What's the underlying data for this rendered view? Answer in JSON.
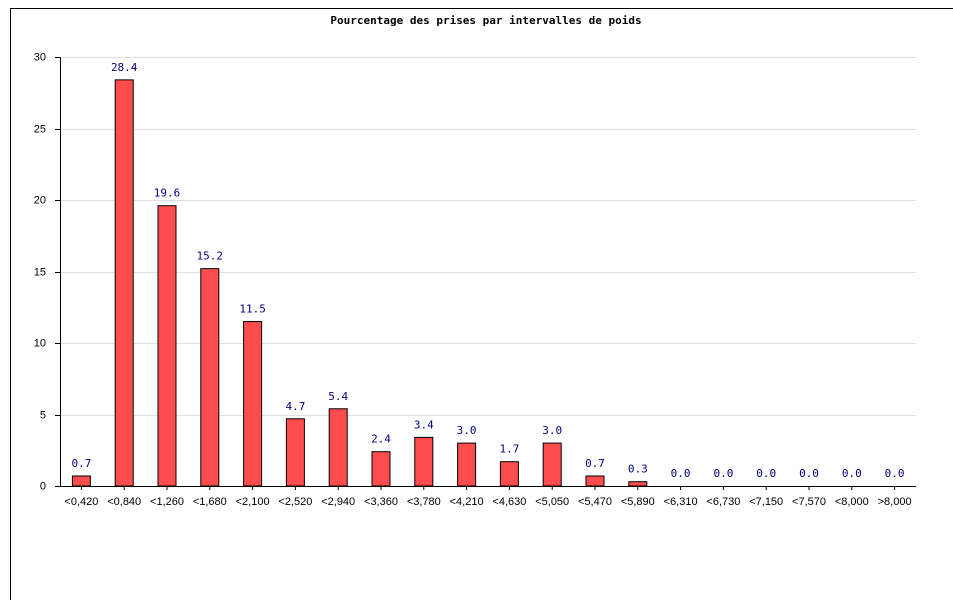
{
  "chart_data": {
    "type": "bar",
    "title": "Pourcentage des prises par intervalles de poids",
    "categories": [
      "<0,420",
      "<0,840",
      "<1,260",
      "<1,680",
      "<2,100",
      "<2,520",
      "<2,940",
      "<3,360",
      "<3,780",
      "<4,210",
      "<4,630",
      "<5,050",
      "<5,470",
      "<5,890",
      "<6,310",
      "<6,730",
      "<7,150",
      "<7,570",
      "<8,000",
      ">8,000"
    ],
    "values": [
      0.7,
      28.4,
      19.6,
      15.2,
      11.5,
      4.7,
      5.4,
      2.4,
      3.4,
      3.0,
      1.7,
      3.0,
      0.7,
      0.3,
      0,
      0,
      0,
      0,
      0,
      0
    ],
    "value_labels": [
      "0.7",
      "28.4",
      "19.6",
      "15.2",
      "11.5",
      "4.7",
      "5.4",
      "2.4",
      "3.4",
      "3.0",
      "1.7",
      "3.0",
      "0.7",
      "0.3",
      "0.0",
      "0.0",
      "0.0",
      "0.0",
      "0.0",
      "0.0"
    ],
    "color": "#ff4d4d",
    "ylim": [
      0,
      30
    ],
    "yticks": [
      0,
      5,
      10,
      15,
      20,
      25,
      30
    ],
    "grid": true
  }
}
